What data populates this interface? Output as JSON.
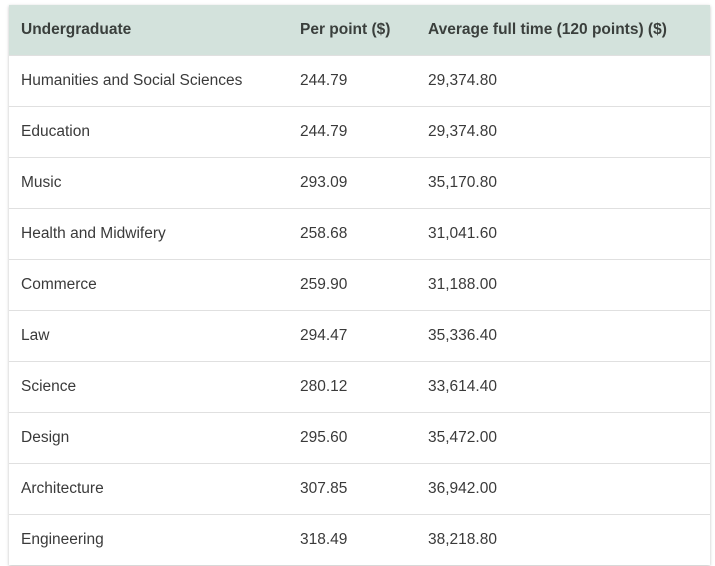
{
  "table": {
    "header": [
      "Undergraduate",
      "Per point ($)",
      "Average full time (120 points) ($)"
    ],
    "rows": [
      [
        "Humanities and Social Sciences",
        "244.79",
        "29,374.80"
      ],
      [
        "Education",
        "244.79",
        "29,374.80"
      ],
      [
        "Music",
        "293.09",
        "35,170.80"
      ],
      [
        "Health and Midwifery",
        "258.68",
        "31,041.60"
      ],
      [
        "Commerce",
        "259.90",
        "31,188.00"
      ],
      [
        "Law",
        "294.47",
        "35,336.40"
      ],
      [
        "Science",
        "280.12",
        "33,614.40"
      ],
      [
        "Design",
        "295.60",
        "35,472.00"
      ],
      [
        "Architecture",
        "307.85",
        "36,942.00"
      ],
      [
        "Engineering",
        "318.49",
        "38,218.80"
      ]
    ]
  }
}
